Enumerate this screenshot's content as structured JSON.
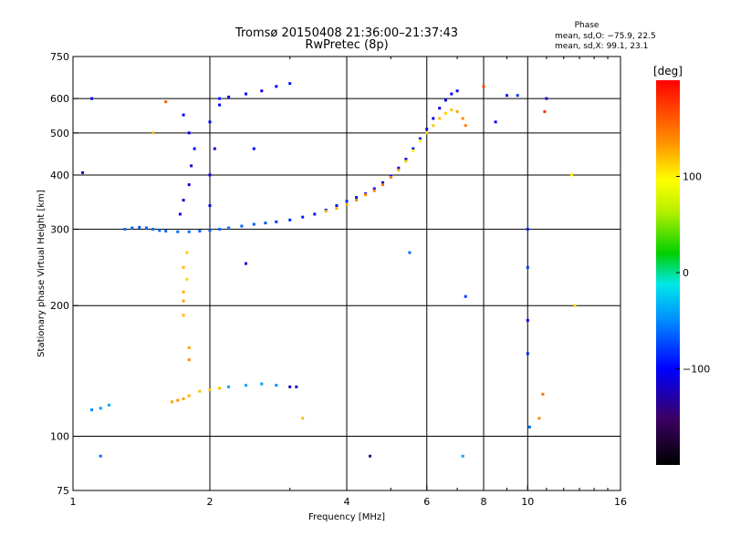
{
  "header": {
    "title_line1": "Tromsø 20150408 21:36:00–21:37:43",
    "title_line2": "RwPretec (8p)",
    "phase_title": "Phase",
    "phase_o": "mean, sd,O: −75.9, 22.5",
    "phase_x": "mean, sd,X:  99.1, 23.1"
  },
  "colorbar": {
    "unit": "[deg]",
    "tick_labels": [
      "100",
      "0",
      "−100"
    ]
  },
  "chart_data": {
    "type": "scatter",
    "xlabel": "Frequency [MHz]",
    "ylabel": "Stationary phase Virtual Height [km]",
    "x_scale": "log",
    "y_scale": "log",
    "xlim": [
      1,
      16
    ],
    "ylim": [
      75,
      750
    ],
    "x_ticks": [
      {
        "value": 1,
        "label": "1"
      },
      {
        "value": 2,
        "label": "2"
      },
      {
        "value": 4,
        "label": "4"
      },
      {
        "value": 6,
        "label": "6"
      },
      {
        "value": 8,
        "label": "8"
      },
      {
        "value": 10,
        "label": "10"
      },
      {
        "value": 16,
        "label": "16"
      }
    ],
    "y_ticks": [
      {
        "value": 75,
        "label": "75"
      },
      {
        "value": 100,
        "label": "100"
      },
      {
        "value": 200,
        "label": "200"
      },
      {
        "value": 300,
        "label": "300"
      },
      {
        "value": 400,
        "label": "400"
      },
      {
        "value": 500,
        "label": "500"
      },
      {
        "value": 600,
        "label": "600"
      },
      {
        "value": 750,
        "label": "750"
      }
    ],
    "x_gridlines": [
      2,
      4,
      6,
      8,
      10
    ],
    "y_gridlines": [
      100,
      200,
      300,
      400,
      500,
      600
    ],
    "grid": true,
    "colorbar": {
      "min": -200,
      "max": 200,
      "ticks": [
        100,
        0,
        -100
      ]
    },
    "series": [
      {
        "name": "O-mode trace (F-region)",
        "points": [
          [
            1.3,
            300,
            -60
          ],
          [
            1.35,
            302,
            -65
          ],
          [
            1.4,
            303,
            -70
          ],
          [
            1.45,
            302,
            -65
          ],
          [
            1.5,
            300,
            -60
          ],
          [
            1.55,
            298,
            -62
          ],
          [
            1.6,
            297,
            -60
          ],
          [
            1.7,
            296,
            -62
          ],
          [
            1.8,
            296,
            -60
          ],
          [
            1.9,
            297,
            -62
          ],
          [
            2.0,
            298,
            -65
          ],
          [
            2.1,
            300,
            -62
          ],
          [
            2.2,
            302,
            -60
          ],
          [
            2.35,
            305,
            -65
          ],
          [
            2.5,
            308,
            -70
          ],
          [
            2.65,
            310,
            -72
          ],
          [
            2.8,
            312,
            -80
          ],
          [
            3.0,
            315,
            -85
          ],
          [
            3.2,
            320,
            -90
          ],
          [
            3.4,
            325,
            -95
          ],
          [
            3.6,
            332,
            -100
          ],
          [
            3.8,
            340,
            -90
          ],
          [
            4.0,
            348,
            -85
          ],
          [
            4.2,
            355,
            -95
          ],
          [
            4.4,
            362,
            -100
          ],
          [
            4.6,
            372,
            -105
          ],
          [
            4.8,
            384,
            -110
          ],
          [
            5.0,
            398,
            -110
          ],
          [
            5.2,
            415,
            -112
          ],
          [
            5.4,
            435,
            -110
          ],
          [
            5.6,
            460,
            -105
          ],
          [
            5.8,
            485,
            -100
          ],
          [
            6.0,
            510,
            -105
          ],
          [
            6.2,
            540,
            -110
          ],
          [
            6.4,
            570,
            -112
          ],
          [
            6.6,
            595,
            -110
          ],
          [
            6.8,
            615,
            -105
          ],
          [
            7.0,
            625,
            -100
          ]
        ]
      },
      {
        "name": "X-mode trace (F-region)",
        "points": [
          [
            3.6,
            330,
            120
          ],
          [
            3.8,
            335,
            125
          ],
          [
            4.0,
            342,
            130
          ],
          [
            4.2,
            350,
            140
          ],
          [
            4.4,
            360,
            135
          ],
          [
            4.6,
            368,
            140
          ],
          [
            4.8,
            380,
            150
          ],
          [
            5.0,
            395,
            140
          ],
          [
            5.2,
            410,
            120
          ],
          [
            5.4,
            430,
            110
          ],
          [
            5.6,
            455,
            100
          ],
          [
            5.8,
            480,
            100
          ],
          [
            6.0,
            500,
            110
          ],
          [
            6.2,
            520,
            115
          ],
          [
            6.4,
            540,
            120
          ],
          [
            6.6,
            555,
            115
          ],
          [
            6.8,
            565,
            120
          ],
          [
            7.0,
            560,
            130
          ],
          [
            7.2,
            540,
            140
          ],
          [
            7.3,
            520,
            145
          ]
        ]
      },
      {
        "name": "E/Es-region echoes",
        "points": [
          [
            1.65,
            120,
            130
          ],
          [
            1.7,
            121,
            135
          ],
          [
            1.75,
            122,
            130
          ],
          [
            1.8,
            124,
            125
          ],
          [
            1.9,
            127,
            120
          ],
          [
            2.0,
            128,
            115
          ],
          [
            2.1,
            129,
            120
          ],
          [
            2.2,
            130,
            -40
          ],
          [
            2.4,
            131,
            -40
          ],
          [
            2.6,
            132,
            -45
          ],
          [
            2.8,
            131,
            -50
          ],
          [
            3.0,
            130,
            -120
          ],
          [
            3.1,
            130,
            -110
          ],
          [
            1.1,
            115,
            -50
          ],
          [
            1.15,
            116,
            -45
          ],
          [
            1.2,
            118,
            -40
          ]
        ]
      },
      {
        "name": "Vertical column echoes",
        "points": [
          [
            1.75,
            190,
            120
          ],
          [
            1.75,
            205,
            130
          ],
          [
            1.75,
            215,
            125
          ],
          [
            1.78,
            230,
            110
          ],
          [
            1.75,
            245,
            120
          ],
          [
            1.78,
            265,
            115
          ],
          [
            1.8,
            150,
            140
          ],
          [
            1.8,
            160,
            130
          ],
          [
            1.72,
            325,
            -110
          ],
          [
            1.75,
            350,
            -120
          ],
          [
            1.8,
            380,
            -110
          ],
          [
            1.82,
            420,
            -115
          ],
          [
            1.85,
            460,
            -100
          ],
          [
            1.8,
            500,
            -110
          ],
          [
            1.75,
            550,
            -105
          ],
          [
            2.0,
            340,
            -100
          ],
          [
            2.0,
            400,
            -110
          ],
          [
            2.05,
            460,
            -115
          ],
          [
            2.0,
            530,
            -100
          ],
          [
            2.1,
            580,
            -105
          ],
          [
            2.1,
            600,
            -90
          ],
          [
            2.2,
            605,
            -95
          ],
          [
            2.4,
            615,
            -100
          ],
          [
            2.6,
            625,
            -110
          ],
          [
            2.8,
            640,
            -100
          ],
          [
            3.0,
            650,
            -90
          ]
        ]
      },
      {
        "name": "Scattered echoes",
        "points": [
          [
            10.0,
            155,
            -90
          ],
          [
            10.0,
            185,
            -100
          ],
          [
            10.0,
            245,
            -80
          ],
          [
            10.0,
            300,
            -90
          ],
          [
            10.1,
            105,
            -60
          ],
          [
            10.8,
            125,
            150
          ],
          [
            10.6,
            110,
            140
          ],
          [
            10.9,
            560,
            180
          ],
          [
            11.0,
            600,
            -120
          ],
          [
            12.5,
            400,
            100
          ],
          [
            12.7,
            200,
            110
          ],
          [
            7.3,
            210,
            -80
          ],
          [
            7.2,
            90,
            -40
          ],
          [
            4.5,
            90,
            -150
          ],
          [
            5.5,
            265,
            -60
          ],
          [
            1.1,
            600,
            -110
          ],
          [
            1.05,
            405,
            -120
          ],
          [
            1.15,
            90,
            -60
          ],
          [
            3.2,
            110,
            120
          ],
          [
            2.5,
            460,
            -100
          ],
          [
            8.0,
            640,
            170
          ],
          [
            8.5,
            530,
            -100
          ],
          [
            9.0,
            610,
            -90
          ],
          [
            9.5,
            610,
            -80
          ],
          [
            1.6,
            590,
            160
          ],
          [
            1.5,
            500,
            120
          ],
          [
            2.4,
            250,
            -110
          ]
        ]
      }
    ]
  }
}
